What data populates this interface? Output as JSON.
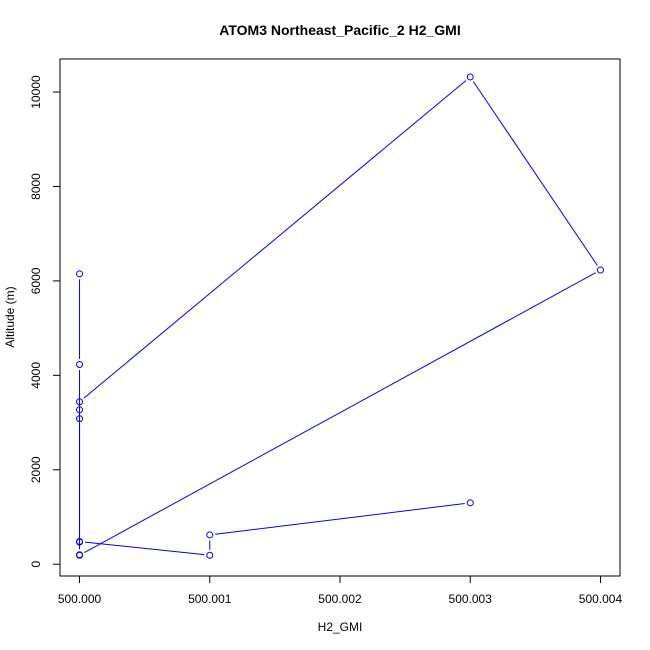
{
  "chart_data": {
    "type": "line",
    "title": "ATOM3 Northeast_Pacific_2 H2_GMI",
    "xlabel": "H2_GMI",
    "ylabel": "Altitude (m)",
    "xlim": [
      499.99985,
      500.00415
    ],
    "ylim": [
      -250,
      10700
    ],
    "x_ticks": [
      500.0,
      500.001,
      500.002,
      500.003,
      500.004
    ],
    "x_tick_labels": [
      "500.000",
      "500.001",
      "500.002",
      "500.003",
      "500.004"
    ],
    "y_ticks": [
      0,
      2000,
      4000,
      6000,
      8000,
      10000
    ],
    "y_tick_labels": [
      "0",
      "2000",
      "4000",
      "6000",
      "8000",
      "10000"
    ],
    "series_color": "#0000ff",
    "marker": "open-circle",
    "series": [
      {
        "points": [
          {
            "x": 500.003,
            "y": 1300
          },
          {
            "x": 500.001,
            "y": 620
          },
          {
            "x": 500.001,
            "y": 190
          },
          {
            "x": 500.0,
            "y": 480
          },
          {
            "x": 500.0,
            "y": 470
          },
          {
            "x": 500.0,
            "y": 3080
          },
          {
            "x": 500.0,
            "y": 3270
          },
          {
            "x": 500.0,
            "y": 3440
          },
          {
            "x": 500.003,
            "y": 10320
          },
          {
            "x": 500.004,
            "y": 6230
          },
          {
            "x": 500.0,
            "y": 190
          },
          {
            "x": 500.0,
            "y": 200
          },
          {
            "x": 500.0,
            "y": 4230
          },
          {
            "x": 500.0,
            "y": 6150
          }
        ]
      }
    ]
  }
}
